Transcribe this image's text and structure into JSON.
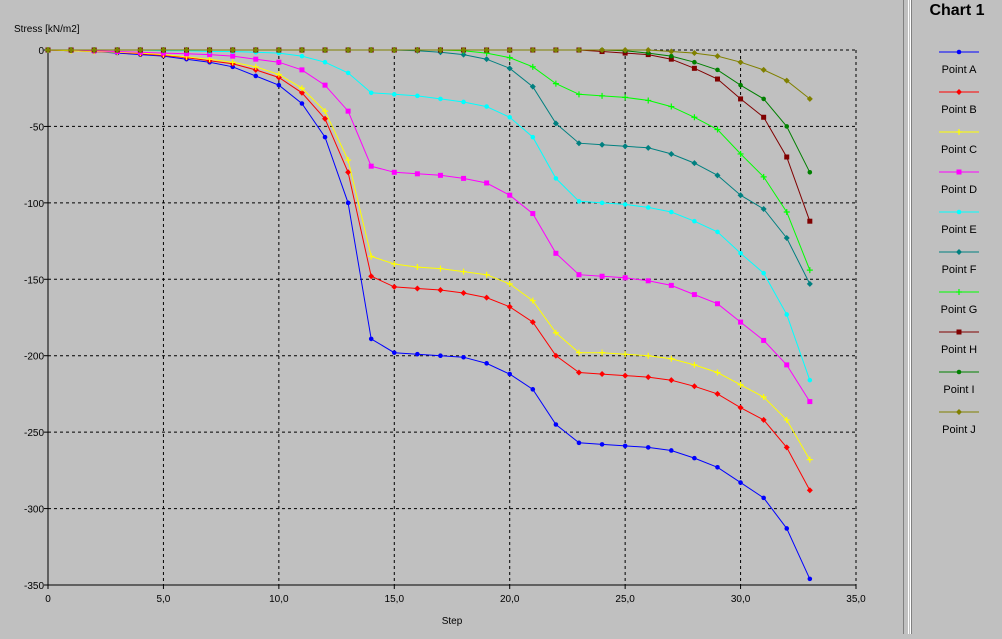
{
  "legend": {
    "title": "Chart 1"
  },
  "chart_data": {
    "type": "line",
    "title": "",
    "xlabel": "Step",
    "ylabel": "Stress [kN/m2]",
    "xlim": [
      0,
      35
    ],
    "ylim": [
      -350,
      0
    ],
    "grid": true,
    "legend_position": "right",
    "xticks": [
      0,
      5,
      10,
      15,
      20,
      25,
      30,
      35
    ],
    "xtick_labels": [
      "0",
      "5,0",
      "10,0",
      "15,0",
      "20,0",
      "25,0",
      "30,0",
      "35,0"
    ],
    "yticks": [
      0,
      -50,
      -100,
      -150,
      -200,
      -250,
      -300,
      -350
    ],
    "ytick_labels": [
      "0",
      "-50",
      "-100",
      "-150",
      "-200",
      "-250",
      "-300",
      "-350"
    ],
    "x": [
      0,
      1,
      2,
      3,
      4,
      5,
      6,
      7,
      8,
      9,
      10,
      11,
      12,
      13,
      14,
      15,
      16,
      17,
      18,
      19,
      20,
      21,
      22,
      23,
      24,
      25,
      26,
      27,
      28,
      29,
      30,
      31,
      32,
      33
    ],
    "series": [
      {
        "name": "Point A",
        "color": "#0000ff",
        "marker": "circle",
        "values": [
          0,
          -0.5,
          -1,
          -2,
          -3,
          -4,
          -6,
          -8,
          -11,
          -17,
          -23,
          -35,
          -57,
          -100,
          -189,
          -198,
          -199,
          -200,
          -201,
          -205,
          -212,
          -222,
          -245,
          -257,
          -258,
          -259,
          -260,
          -262,
          -267,
          -273,
          -283,
          -293,
          -313,
          -346
        ]
      },
      {
        "name": "Point B",
        "color": "#ff0000",
        "marker": "diamond",
        "values": [
          0,
          -0.5,
          -1,
          -1.5,
          -2.5,
          -3.5,
          -5,
          -7,
          -9,
          -13,
          -18,
          -28,
          -45,
          -80,
          -148,
          -155,
          -156,
          -157,
          -159,
          -162,
          -168,
          -178,
          -200,
          -211,
          -212,
          -213,
          -214,
          -216,
          -220,
          -225,
          -234,
          -242,
          -260,
          -288
        ]
      },
      {
        "name": "Point C",
        "color": "#ffff00",
        "marker": "plus",
        "values": [
          0,
          -0.5,
          -1,
          -1.5,
          -2,
          -3,
          -4.5,
          -6,
          -8,
          -11,
          -16,
          -25,
          -40,
          -72,
          -135,
          -140,
          -142,
          -143,
          -145,
          -147,
          -153,
          -164,
          -185,
          -198,
          -198,
          -199,
          -200,
          -202,
          -206,
          -211,
          -219,
          -227,
          -242,
          -268
        ]
      },
      {
        "name": "Point D",
        "color": "#ff00ff",
        "marker": "square",
        "values": [
          0,
          0,
          -0.5,
          -1,
          -1.5,
          -2,
          -2.5,
          -3,
          -4,
          -6,
          -8,
          -13,
          -23,
          -40,
          -76,
          -80,
          -81,
          -82,
          -84,
          -87,
          -95,
          -107,
          -133,
          -147,
          -148,
          -149,
          -151,
          -154,
          -160,
          -166,
          -178,
          -190,
          -206,
          -230
        ]
      },
      {
        "name": "Point E",
        "color": "#00ffff",
        "marker": "circle",
        "values": [
          0,
          0,
          0,
          0,
          0,
          -0.5,
          -0.5,
          -1,
          -1,
          -1.5,
          -2,
          -4,
          -8,
          -15,
          -28,
          -29,
          -30,
          -32,
          -34,
          -37,
          -44,
          -57,
          -84,
          -99,
          -100,
          -101,
          -103,
          -106,
          -112,
          -119,
          -133,
          -146,
          -173,
          -216
        ]
      },
      {
        "name": "Point F",
        "color": "#008080",
        "marker": "diamond",
        "values": [
          0,
          0,
          0,
          0,
          0,
          0,
          0,
          0,
          0,
          0,
          0,
          0,
          0,
          0,
          0,
          0,
          -0.5,
          -1.5,
          -3,
          -6,
          -12,
          -24,
          -48,
          -61,
          -62,
          -63,
          -64,
          -68,
          -74,
          -82,
          -95,
          -104,
          -123,
          -153
        ]
      },
      {
        "name": "Point G",
        "color": "#00ff00",
        "marker": "plus",
        "values": [
          0,
          0,
          0,
          0,
          0,
          0,
          0,
          0,
          0,
          0,
          0,
          0,
          0,
          0,
          0,
          0,
          0,
          0,
          -0.5,
          -2,
          -5,
          -11,
          -22,
          -29,
          -30,
          -31,
          -33,
          -37,
          -44,
          -52,
          -68,
          -83,
          -106,
          -144
        ]
      },
      {
        "name": "Point H",
        "color": "#800000",
        "marker": "square",
        "values": [
          0,
          0,
          0,
          0,
          0,
          0,
          0,
          0,
          0,
          0,
          0,
          0,
          0,
          0,
          0,
          0,
          0,
          0,
          0,
          0,
          0,
          0,
          0,
          0,
          -1,
          -2,
          -3,
          -6,
          -12,
          -19,
          -32,
          -44,
          -70,
          -112
        ]
      },
      {
        "name": "Point I",
        "color": "#008000",
        "marker": "circle",
        "values": [
          0,
          0,
          0,
          0,
          0,
          0,
          0,
          0,
          0,
          0,
          0,
          0,
          0,
          0,
          0,
          0,
          0,
          0,
          0,
          0,
          0,
          0,
          0,
          0,
          0,
          -0.5,
          -2,
          -4,
          -8,
          -13,
          -23,
          -32,
          -50,
          -80
        ]
      },
      {
        "name": "Point J",
        "color": "#808000",
        "marker": "diamond",
        "values": [
          0,
          0,
          0,
          0,
          0,
          0,
          0,
          0,
          0,
          0,
          0,
          0,
          0,
          0,
          0,
          0,
          0,
          0,
          0,
          0,
          0,
          0,
          0,
          0,
          0,
          0,
          0,
          -1,
          -2,
          -4,
          -8,
          -13,
          -20,
          -32
        ]
      }
    ]
  }
}
